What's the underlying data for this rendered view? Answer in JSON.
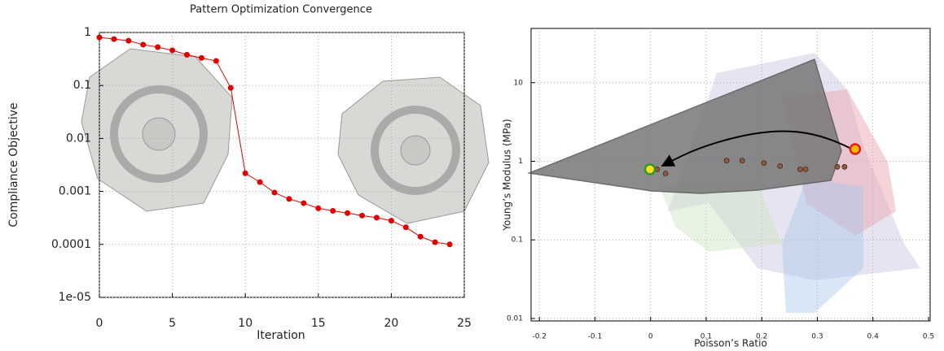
{
  "chart_data": [
    {
      "type": "line",
      "title": "Pattern Optimization Convergence",
      "xlabel": "Iteration",
      "ylabel": "Compliance Objective",
      "x": [
        0,
        1,
        2,
        3,
        4,
        5,
        6,
        7,
        8,
        9,
        10,
        11,
        12,
        13,
        14,
        15,
        16,
        17,
        18,
        19,
        20,
        21,
        22,
        23,
        24
      ],
      "values": [
        0.81,
        0.75,
        0.7,
        0.59,
        0.53,
        0.46,
        0.38,
        0.33,
        0.29,
        0.09,
        0.0022,
        0.0015,
        0.00095,
        0.00072,
        0.0006,
        0.00048,
        0.00043,
        0.00039,
        0.00035,
        0.00032,
        0.00028,
        0.00021,
        0.00014,
        0.00011,
        0.0001
      ],
      "color": "#e00000",
      "log_y": true,
      "grid": true,
      "xlim": [
        0,
        25
      ],
      "xticks": [
        0,
        5,
        10,
        15,
        20,
        25
      ],
      "ylim": [
        1e-05,
        1
      ],
      "yticks": [
        1,
        0.1,
        0.01,
        0.001,
        0.0001,
        {
          "value": 1e-05,
          "label": "1e-05"
        }
      ]
    },
    {
      "type": "scatter",
      "xlabel": "Poisson’s Ratio",
      "ylabel": "Young’s Modulus (MPa)",
      "log_y": true,
      "grid": true,
      "xlim": [
        -0.215,
        0.503
      ],
      "xticks": [
        -0.2,
        -0.1,
        0,
        0.1,
        0.2,
        0.3,
        0.4,
        0.5
      ],
      "ylim": [
        0.0093,
        49
      ],
      "yticks": [
        10,
        1,
        0.1,
        0.01
      ],
      "series": [
        {
          "color": "#8b5a3c",
          "edgecolor": "#4a2a18",
          "x": [
            0.012,
            0.027,
            0.137,
            0.165,
            0.204,
            0.233,
            0.269,
            0.279,
            0.336,
            0.349
          ],
          "values": [
            0.79,
            0.7,
            1.02,
            1.02,
            0.95,
            0.87,
            0.79,
            0.79,
            0.85,
            0.85
          ]
        },
        {
          "color": "#f5b800",
          "edgecolor": "#e02020",
          "x": [
            0.368
          ],
          "values": [
            1.43
          ]
        },
        {
          "color": "#f5e020",
          "edgecolor": "#2a9a2a",
          "x": [
            -0.001
          ],
          "values": [
            0.79
          ]
        }
      ]
    }
  ]
}
